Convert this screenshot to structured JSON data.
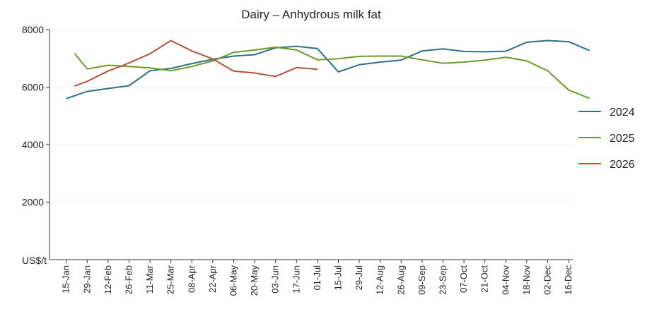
{
  "chart_data": {
    "type": "line",
    "title": "Dairy – Anhydrous milk fat",
    "ylabel": "US$/t",
    "xlabel": "",
    "ylim": [
      0,
      8000
    ],
    "yticks": [
      2000,
      4000,
      6000,
      8000
    ],
    "grid": true,
    "legend_position": "right",
    "categories": [
      "15-Jan",
      "29-Jan",
      "12-Feb",
      "26-Feb",
      "11-Mar",
      "25-Mar",
      "08-Apr",
      "22-Apr",
      "06-May",
      "20-May",
      "03-Jun",
      "17-Jun",
      "01-Jul",
      "15-Jul",
      "29-Jul",
      "12-Aug",
      "26-Aug",
      "09-Sep",
      "23-Sep",
      "07-Oct",
      "21-Oct",
      "04-Nov",
      "18-Nov",
      "02-Dec",
      "16-Dec"
    ],
    "series": [
      {
        "name": "2024",
        "color": "#2e6f80",
        "points": [
          [
            0,
            5600
          ],
          [
            1,
            5850
          ],
          [
            2,
            5950
          ],
          [
            3,
            6050
          ],
          [
            4,
            6570
          ],
          [
            5,
            6650
          ],
          [
            6,
            6820
          ],
          [
            7,
            6970
          ],
          [
            8,
            7080
          ],
          [
            9,
            7130
          ],
          [
            10,
            7370
          ],
          [
            11,
            7420
          ],
          [
            12,
            7340
          ],
          [
            13,
            6530
          ],
          [
            14,
            6780
          ],
          [
            15,
            6870
          ],
          [
            16,
            6940
          ],
          [
            17,
            7260
          ],
          [
            18,
            7330
          ],
          [
            19,
            7240
          ],
          [
            20,
            7230
          ],
          [
            21,
            7250
          ],
          [
            22,
            7560
          ],
          [
            23,
            7620
          ],
          [
            24,
            7580
          ],
          [
            25,
            7270
          ]
        ]
      },
      {
        "name": "2025",
        "color": "#6a9a2a",
        "points": [
          [
            0.4,
            7170
          ],
          [
            1,
            6630
          ],
          [
            2,
            6760
          ],
          [
            3,
            6720
          ],
          [
            4,
            6670
          ],
          [
            5,
            6570
          ],
          [
            6,
            6720
          ],
          [
            7,
            6910
          ],
          [
            8,
            7210
          ],
          [
            9,
            7290
          ],
          [
            10,
            7390
          ],
          [
            11,
            7290
          ],
          [
            12,
            6950
          ],
          [
            13,
            6990
          ],
          [
            14,
            7070
          ],
          [
            15,
            7080
          ],
          [
            16,
            7080
          ],
          [
            17,
            6950
          ],
          [
            18,
            6830
          ],
          [
            19,
            6870
          ],
          [
            20,
            6940
          ],
          [
            21,
            7040
          ],
          [
            22,
            6910
          ],
          [
            23,
            6570
          ],
          [
            24,
            5900
          ],
          [
            25,
            5610
          ]
        ]
      },
      {
        "name": "2026",
        "color": "#b5503a",
        "points": [
          [
            0.4,
            6040
          ],
          [
            1,
            6200
          ],
          [
            2,
            6560
          ],
          [
            3,
            6840
          ],
          [
            4,
            7160
          ],
          [
            5,
            7620
          ],
          [
            6,
            7260
          ],
          [
            7,
            6980
          ],
          [
            8,
            6560
          ],
          [
            9,
            6490
          ],
          [
            10,
            6370
          ],
          [
            11,
            6680
          ],
          [
            12,
            6620
          ]
        ]
      }
    ]
  }
}
